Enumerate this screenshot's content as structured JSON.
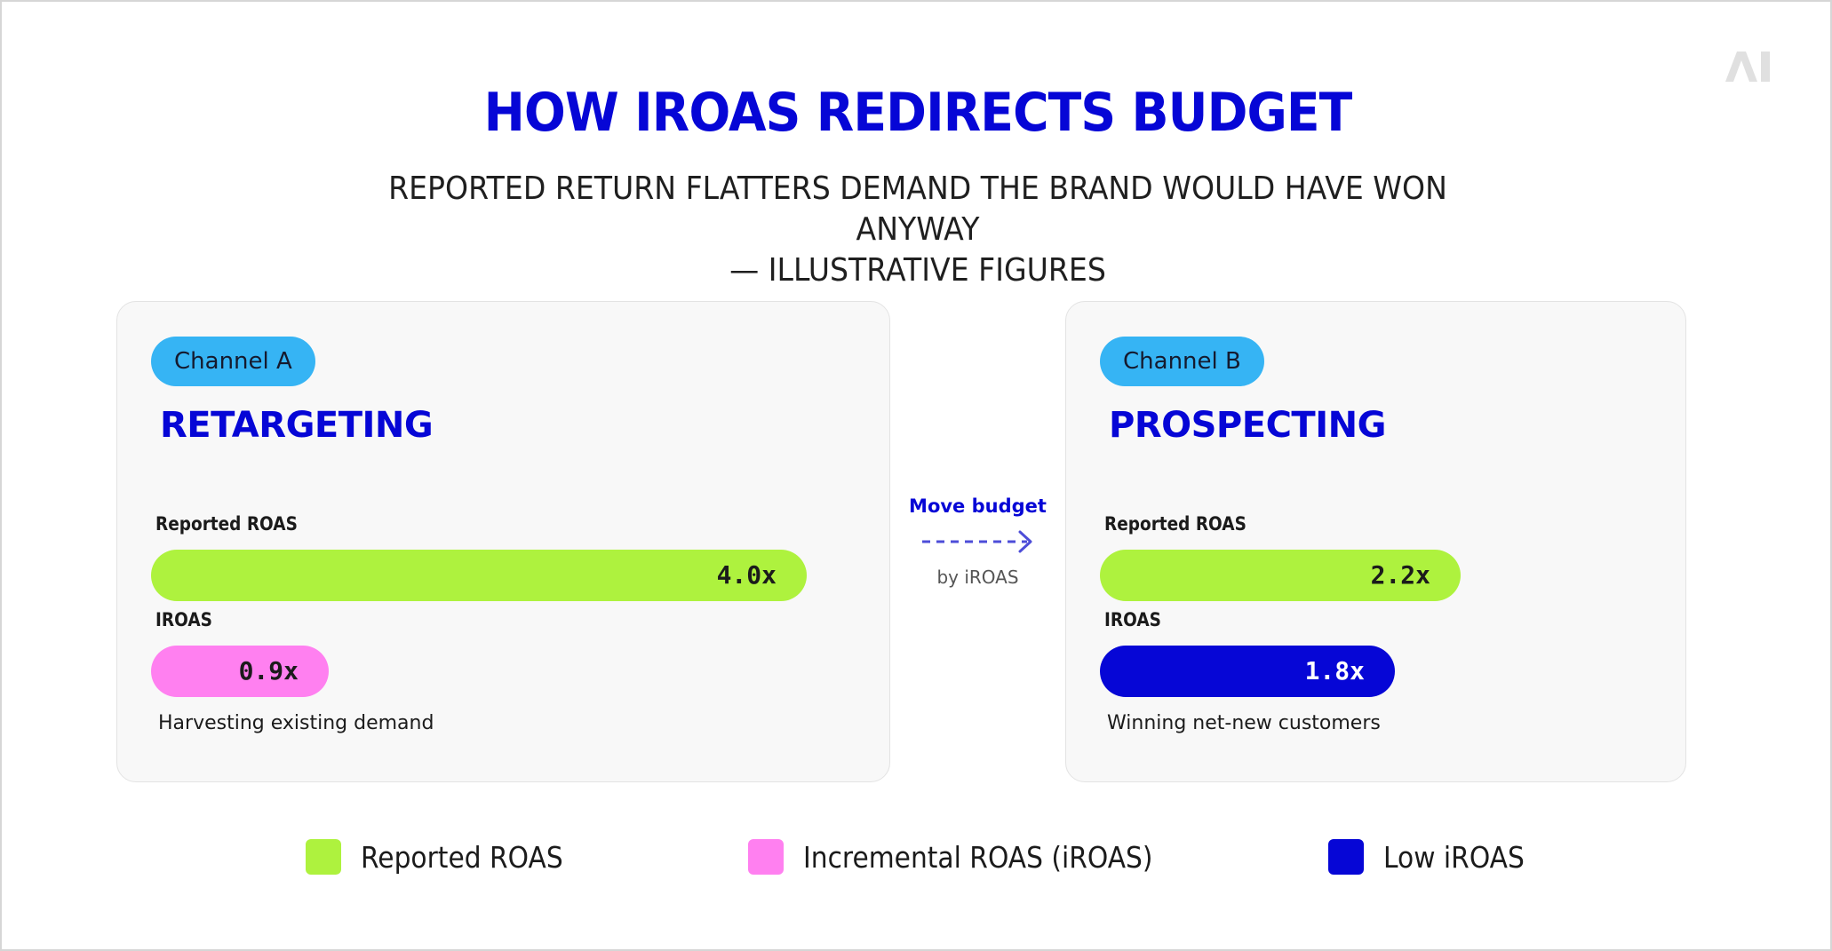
{
  "title": "HOW IROAS REDIRECTS BUDGET",
  "subtitle_line1": "REPORTED RETURN FLATTERS DEMAND THE BRAND WOULD HAVE WON ANYWAY",
  "subtitle_line2": "— ILLUSTRATIVE FIGURES",
  "logo_text": "AI",
  "colors": {
    "reported": "#aef23e",
    "iroas": "#ff80f0",
    "low_iroas": "#0606d6",
    "accent": "#0606d6",
    "pill": "#36b4f4"
  },
  "move": {
    "label": "Move budget",
    "sub": "by iROAS"
  },
  "chart_data": {
    "type": "bar",
    "orientation": "horizontal",
    "xlim": [
      0,
      4.6
    ],
    "panels": [
      {
        "channel": "Channel A",
        "name": "RETARGETING",
        "caption": "Harvesting existing demand",
        "bars": [
          {
            "label": "Reported ROAS",
            "value": 4.0,
            "display": "4.0x",
            "series": "Reported ROAS"
          },
          {
            "label": "IROAS",
            "value": 0.9,
            "display": "0.9x",
            "series": "Incremental ROAS (iROAS)"
          }
        ]
      },
      {
        "channel": "Channel B",
        "name": "PROSPECTING",
        "caption": "Winning net-new customers",
        "bars": [
          {
            "label": "Reported ROAS",
            "value": 2.2,
            "display": "2.2x",
            "series": "Reported ROAS"
          },
          {
            "label": "IROAS",
            "value": 1.8,
            "display": "1.8x",
            "series": "Low iROAS"
          }
        ]
      }
    ],
    "legend": [
      {
        "label": "Reported ROAS",
        "color": "#aef23e"
      },
      {
        "label": "Incremental ROAS (iROAS)",
        "color": "#ff80f0"
      },
      {
        "label": "Low iROAS",
        "color": "#0606d6"
      }
    ],
    "legend_position": "bottom"
  }
}
